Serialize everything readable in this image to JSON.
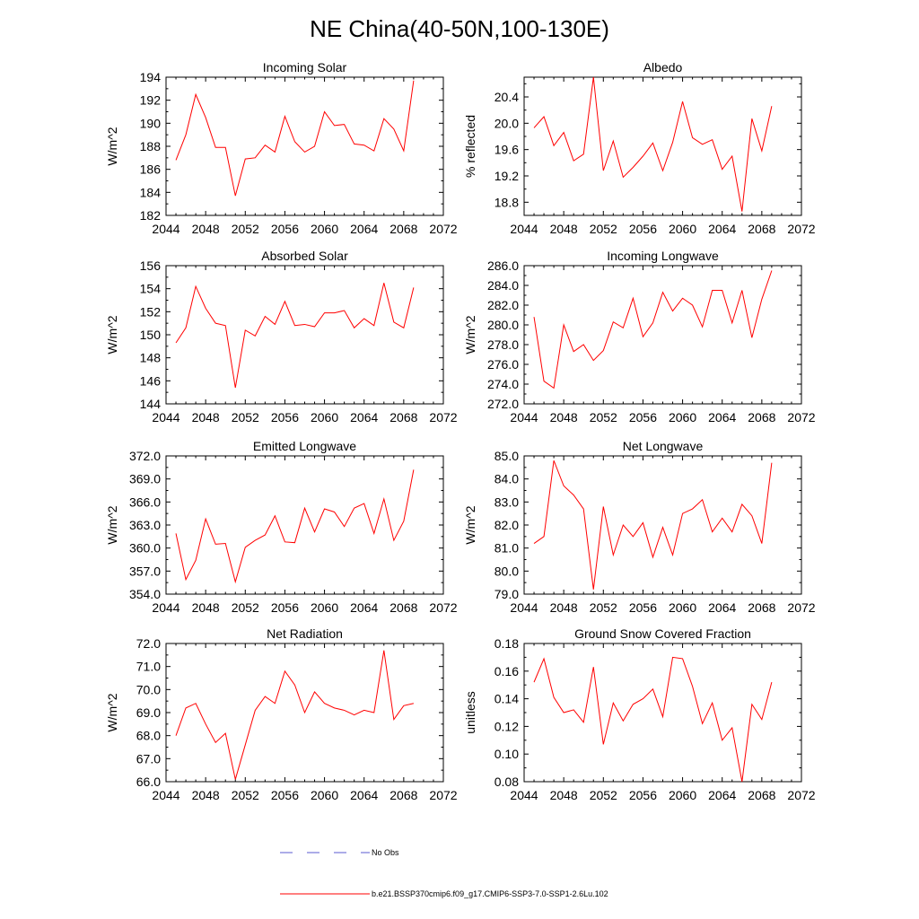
{
  "figure": {
    "title": "NE China(40-50N,100-130E)",
    "legend": {
      "obs_label": "No Obs",
      "obs_color": "#5a5ad0",
      "model_label": "b.e21.BSSP370cmip6.f09_g17.CMIP6-SSP3-7.0-SSP1-2.6Lu.102",
      "model_color": "#ff0000"
    }
  },
  "chart_data": [
    {
      "type": "line",
      "title": "Incoming Solar",
      "ylabel": "W/m^2",
      "xlim": [
        2044,
        2072
      ],
      "x_ticks": [
        "2044",
        "2048",
        "2052",
        "2056",
        "2060",
        "2064",
        "2068",
        "2072"
      ],
      "ylim": [
        182,
        194
      ],
      "y_ticks": [
        "182",
        "184",
        "186",
        "188",
        "190",
        "192",
        "194"
      ],
      "x": [
        2045,
        2046,
        2047,
        2048,
        2049,
        2050,
        2051,
        2052,
        2053,
        2054,
        2055,
        2056,
        2057,
        2058,
        2059,
        2060,
        2061,
        2062,
        2063,
        2064,
        2065,
        2066,
        2067,
        2068,
        2069
      ],
      "series": [
        {
          "values": [
            186.8,
            189.0,
            192.5,
            190.5,
            187.9,
            187.9,
            183.7,
            186.9,
            187.0,
            188.1,
            187.5,
            190.6,
            188.4,
            187.5,
            188.0,
            191.0,
            189.8,
            189.9,
            188.2,
            188.1,
            187.6,
            190.4,
            189.5,
            187.6,
            193.7
          ]
        }
      ]
    },
    {
      "type": "line",
      "title": "Albedo",
      "ylabel": "% reflected",
      "xlim": [
        2044,
        2072
      ],
      "x_ticks": [
        "2044",
        "2048",
        "2052",
        "2056",
        "2060",
        "2064",
        "2068",
        "2072"
      ],
      "ylim": [
        18.6,
        20.7
      ],
      "y_ticks": [
        "18.8",
        "19.2",
        "19.6",
        "20.0",
        "20.4"
      ],
      "x": [
        2045,
        2046,
        2047,
        2048,
        2049,
        2050,
        2051,
        2052,
        2053,
        2054,
        2055,
        2056,
        2057,
        2058,
        2059,
        2060,
        2061,
        2062,
        2063,
        2064,
        2065,
        2066,
        2067,
        2068,
        2069
      ],
      "series": [
        {
          "values": [
            19.93,
            20.1,
            19.66,
            19.86,
            19.43,
            19.53,
            20.7,
            19.28,
            19.73,
            19.18,
            19.33,
            19.5,
            19.7,
            19.28,
            19.71,
            20.33,
            19.78,
            19.68,
            19.75,
            19.3,
            19.5,
            18.66,
            20.07,
            19.58,
            20.26
          ]
        }
      ]
    },
    {
      "type": "line",
      "title": "Absorbed Solar",
      "ylabel": "W/m^2",
      "xlim": [
        2044,
        2072
      ],
      "x_ticks": [
        "2044",
        "2048",
        "2052",
        "2056",
        "2060",
        "2064",
        "2068",
        "2072"
      ],
      "ylim": [
        144,
        156
      ],
      "y_ticks": [
        "144",
        "146",
        "148",
        "150",
        "152",
        "154",
        "156"
      ],
      "x": [
        2045,
        2046,
        2047,
        2048,
        2049,
        2050,
        2051,
        2052,
        2053,
        2054,
        2055,
        2056,
        2057,
        2058,
        2059,
        2060,
        2061,
        2062,
        2063,
        2064,
        2065,
        2066,
        2067,
        2068,
        2069
      ],
      "series": [
        {
          "values": [
            149.3,
            150.6,
            154.2,
            152.3,
            151.0,
            150.8,
            145.4,
            150.4,
            149.9,
            151.6,
            150.9,
            152.9,
            150.8,
            150.9,
            150.7,
            151.9,
            151.9,
            152.1,
            150.6,
            151.4,
            150.8,
            154.5,
            151.1,
            150.6,
            154.1
          ]
        }
      ]
    },
    {
      "type": "line",
      "title": "Incoming Longwave",
      "ylabel": "W/m^2",
      "xlim": [
        2044,
        2072
      ],
      "x_ticks": [
        "2044",
        "2048",
        "2052",
        "2056",
        "2060",
        "2064",
        "2068",
        "2072"
      ],
      "ylim": [
        272,
        286
      ],
      "y_ticks": [
        "272.0",
        "274.0",
        "276.0",
        "278.0",
        "280.0",
        "282.0",
        "284.0",
        "286.0"
      ],
      "x": [
        2045,
        2046,
        2047,
        2048,
        2049,
        2050,
        2051,
        2052,
        2053,
        2054,
        2055,
        2056,
        2057,
        2058,
        2059,
        2060,
        2061,
        2062,
        2063,
        2064,
        2065,
        2066,
        2067,
        2068,
        2069
      ],
      "series": [
        {
          "values": [
            280.8,
            274.3,
            273.6,
            280.0,
            277.3,
            278.0,
            276.4,
            277.4,
            280.3,
            279.7,
            282.7,
            278.8,
            280.2,
            283.3,
            281.4,
            282.7,
            282.0,
            279.8,
            283.5,
            283.5,
            280.2,
            283.5,
            278.7,
            282.6,
            285.5
          ]
        }
      ]
    },
    {
      "type": "line",
      "title": "Emitted Longwave",
      "ylabel": "W/m^2",
      "xlim": [
        2044,
        2072
      ],
      "x_ticks": [
        "2044",
        "2048",
        "2052",
        "2056",
        "2060",
        "2064",
        "2068",
        "2072"
      ],
      "ylim": [
        354,
        372
      ],
      "y_ticks": [
        "354.0",
        "357.0",
        "360.0",
        "363.0",
        "366.0",
        "369.0",
        "372.0"
      ],
      "x": [
        2045,
        2046,
        2047,
        2048,
        2049,
        2050,
        2051,
        2052,
        2053,
        2054,
        2055,
        2056,
        2057,
        2058,
        2059,
        2060,
        2061,
        2062,
        2063,
        2064,
        2065,
        2066,
        2067,
        2068,
        2069
      ],
      "series": [
        {
          "values": [
            361.9,
            355.9,
            358.4,
            363.8,
            360.5,
            360.6,
            355.6,
            360.1,
            361.0,
            361.7,
            364.2,
            360.8,
            360.7,
            365.2,
            362.1,
            365.1,
            364.7,
            362.8,
            365.2,
            365.8,
            361.9,
            366.4,
            361.0,
            363.5,
            370.2
          ]
        }
      ]
    },
    {
      "type": "line",
      "title": "Net Longwave",
      "ylabel": "W/m^2",
      "xlim": [
        2044,
        2072
      ],
      "x_ticks": [
        "2044",
        "2048",
        "2052",
        "2056",
        "2060",
        "2064",
        "2068",
        "2072"
      ],
      "ylim": [
        79,
        85
      ],
      "y_ticks": [
        "79.0",
        "80.0",
        "81.0",
        "82.0",
        "83.0",
        "84.0",
        "85.0"
      ],
      "x": [
        2045,
        2046,
        2047,
        2048,
        2049,
        2050,
        2051,
        2052,
        2053,
        2054,
        2055,
        2056,
        2057,
        2058,
        2059,
        2060,
        2061,
        2062,
        2063,
        2064,
        2065,
        2066,
        2067,
        2068,
        2069
      ],
      "series": [
        {
          "values": [
            81.2,
            81.5,
            84.8,
            83.7,
            83.3,
            82.7,
            79.2,
            82.8,
            80.7,
            82.0,
            81.5,
            82.1,
            80.6,
            81.9,
            80.7,
            82.5,
            82.7,
            83.1,
            81.7,
            82.3,
            81.7,
            82.9,
            82.4,
            81.2,
            84.7
          ]
        }
      ]
    },
    {
      "type": "line",
      "title": "Net Radiation",
      "ylabel": "W/m^2",
      "xlim": [
        2044,
        2072
      ],
      "x_ticks": [
        "2044",
        "2048",
        "2052",
        "2056",
        "2060",
        "2064",
        "2068",
        "2072"
      ],
      "ylim": [
        66,
        72
      ],
      "y_ticks": [
        "66.0",
        "67.0",
        "68.0",
        "69.0",
        "70.0",
        "71.0",
        "72.0"
      ],
      "x": [
        2045,
        2046,
        2047,
        2048,
        2049,
        2050,
        2051,
        2052,
        2053,
        2054,
        2055,
        2056,
        2057,
        2058,
        2059,
        2060,
        2061,
        2062,
        2063,
        2064,
        2065,
        2066,
        2067,
        2068,
        2069
      ],
      "series": [
        {
          "values": [
            68.0,
            69.2,
            69.4,
            68.5,
            67.7,
            68.1,
            66.1,
            67.6,
            69.1,
            69.7,
            69.4,
            70.8,
            70.2,
            69.0,
            69.9,
            69.4,
            69.2,
            69.1,
            68.9,
            69.1,
            69.0,
            71.7,
            68.7,
            69.3,
            69.4
          ]
        }
      ]
    },
    {
      "type": "line",
      "title": "Ground Snow Covered Fraction",
      "ylabel": "unitless",
      "xlim": [
        2044,
        2072
      ],
      "x_ticks": [
        "2044",
        "2048",
        "2052",
        "2056",
        "2060",
        "2064",
        "2068",
        "2072"
      ],
      "ylim": [
        0.08,
        0.18
      ],
      "y_ticks": [
        "0.08",
        "0.10",
        "0.12",
        "0.14",
        "0.16",
        "0.18"
      ],
      "x": [
        2045,
        2046,
        2047,
        2048,
        2049,
        2050,
        2051,
        2052,
        2053,
        2054,
        2055,
        2056,
        2057,
        2058,
        2059,
        2060,
        2061,
        2062,
        2063,
        2064,
        2065,
        2066,
        2067,
        2068,
        2069
      ],
      "series": [
        {
          "values": [
            0.152,
            0.169,
            0.141,
            0.13,
            0.132,
            0.123,
            0.163,
            0.107,
            0.137,
            0.124,
            0.136,
            0.14,
            0.147,
            0.127,
            0.17,
            0.169,
            0.149,
            0.122,
            0.137,
            0.11,
            0.119,
            0.08,
            0.136,
            0.125,
            0.152
          ]
        }
      ]
    }
  ]
}
